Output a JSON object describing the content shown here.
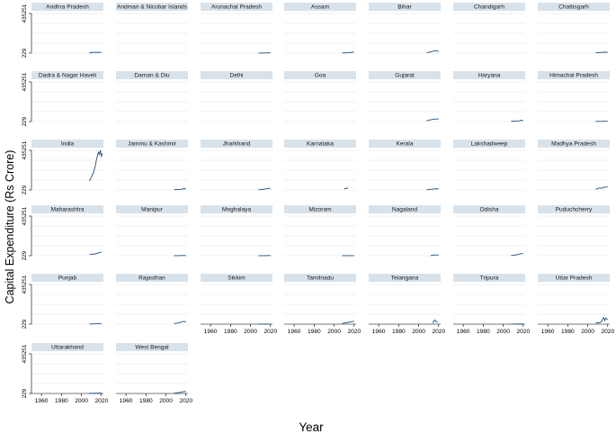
{
  "chart_data": {
    "type": "line",
    "ylabel": "Capital Expenditure (Rs Crore)",
    "xlabel": "Year",
    "y_ticks": [
      "435251",
      "229"
    ],
    "ylim": [
      229,
      435251
    ],
    "x_ticks": [
      "1960",
      "1980",
      "2000",
      "2020"
    ],
    "xlim": [
      1950,
      2022
    ],
    "grid": true,
    "panels": [
      {
        "name": "Andhra Pradesh",
        "series": [
          [
            2008,
            4000
          ],
          [
            2010,
            6500
          ],
          [
            2012,
            8000
          ],
          [
            2014,
            9000
          ],
          [
            2016,
            7500
          ],
          [
            2018,
            9500
          ],
          [
            2020,
            8500
          ]
        ]
      },
      {
        "name": "Andman & Nicobar Islands",
        "series": []
      },
      {
        "name": "Arunachal Pradesh",
        "series": [
          [
            2008,
            900
          ],
          [
            2010,
            1100
          ],
          [
            2012,
            1400
          ],
          [
            2014,
            1700
          ],
          [
            2016,
            2200
          ],
          [
            2018,
            2900
          ],
          [
            2020,
            3500
          ]
        ]
      },
      {
        "name": "Assam",
        "series": [
          [
            2008,
            2000
          ],
          [
            2010,
            2600
          ],
          [
            2012,
            3500
          ],
          [
            2014,
            4500
          ],
          [
            2016,
            6500
          ],
          [
            2018,
            9500
          ],
          [
            2020,
            13000
          ]
        ]
      },
      {
        "name": "Bihar",
        "series": [
          [
            2008,
            6000
          ],
          [
            2010,
            9000
          ],
          [
            2012,
            13000
          ],
          [
            2014,
            20000
          ],
          [
            2016,
            27000
          ],
          [
            2018,
            24000
          ],
          [
            2020,
            19000
          ]
        ]
      },
      {
        "name": "Chandigarh",
        "series": []
      },
      {
        "name": "Chattisgarh",
        "series": [
          [
            2008,
            3000
          ],
          [
            2010,
            4500
          ],
          [
            2012,
            6000
          ],
          [
            2014,
            8500
          ],
          [
            2016,
            10000
          ],
          [
            2018,
            10500
          ],
          [
            2020,
            9500
          ]
        ]
      },
      {
        "name": "Dadra & Nagar Haveli",
        "series": []
      },
      {
        "name": "Daman & Diu",
        "series": []
      },
      {
        "name": "Delhi",
        "series": []
      },
      {
        "name": "Goa",
        "series": []
      },
      {
        "name": "Gujarat",
        "series": [
          [
            2008,
            10000
          ],
          [
            2010,
            14000
          ],
          [
            2012,
            19000
          ],
          [
            2014,
            24000
          ],
          [
            2016,
            27000
          ],
          [
            2018,
            29000
          ],
          [
            2020,
            28000
          ]
        ]
      },
      {
        "name": "Haryana",
        "series": [
          [
            2008,
            3000
          ],
          [
            2010,
            4000
          ],
          [
            2012,
            5000
          ],
          [
            2014,
            6000
          ],
          [
            2016,
            8000
          ],
          [
            2018,
            15000
          ],
          [
            2020,
            10000
          ]
        ]
      },
      {
        "name": "Himachal  Pradesh",
        "series": [
          [
            2008,
            1500
          ],
          [
            2010,
            1800
          ],
          [
            2012,
            2100
          ],
          [
            2014,
            2500
          ],
          [
            2016,
            3000
          ],
          [
            2018,
            3400
          ],
          [
            2020,
            3600
          ]
        ]
      },
      {
        "name": "India",
        "series": [
          [
            2008,
            100000
          ],
          [
            2010,
            140000
          ],
          [
            2011,
            170000
          ],
          [
            2012,
            190000
          ],
          [
            2013,
            230000
          ],
          [
            2014,
            270000
          ],
          [
            2015,
            330000
          ],
          [
            2016,
            375000
          ],
          [
            2017,
            415000
          ],
          [
            2018,
            390000
          ],
          [
            2019,
            435251
          ],
          [
            2020,
            370000
          ],
          [
            2021,
            400000
          ]
        ]
      },
      {
        "name": "Jammu & Kashmir",
        "series": [
          [
            2008,
            3000
          ],
          [
            2010,
            4000
          ],
          [
            2012,
            5500
          ],
          [
            2014,
            6000
          ],
          [
            2016,
            10000
          ],
          [
            2018,
            15000
          ],
          [
            2020,
            12000
          ]
        ]
      },
      {
        "name": "Jharkhand",
        "series": [
          [
            2008,
            3000
          ],
          [
            2010,
            4500
          ],
          [
            2012,
            6500
          ],
          [
            2014,
            10000
          ],
          [
            2016,
            15000
          ],
          [
            2018,
            18000
          ],
          [
            2020,
            16000
          ]
        ]
      },
      {
        "name": "Karnataka",
        "series": [
          [
            2010,
            12000
          ],
          [
            2012,
            17000
          ],
          [
            2014,
            23000
          ]
        ]
      },
      {
        "name": "Kerala",
        "series": [
          [
            2008,
            3000
          ],
          [
            2010,
            5000
          ],
          [
            2012,
            7000
          ],
          [
            2014,
            9500
          ],
          [
            2016,
            12000
          ],
          [
            2018,
            13000
          ],
          [
            2020,
            12000
          ]
        ]
      },
      {
        "name": "Lakshadweep",
        "series": []
      },
      {
        "name": "Madhya Pradesh",
        "series": [
          [
            2008,
            10000
          ],
          [
            2010,
            16000
          ],
          [
            2012,
            23000
          ],
          [
            2014,
            18000
          ],
          [
            2016,
            28000
          ],
          [
            2018,
            32000
          ],
          [
            2020,
            34000
          ]
        ]
      },
      {
        "name": "Maharashtra",
        "series": [
          [
            2008,
            14000
          ],
          [
            2010,
            16000
          ],
          [
            2012,
            18000
          ],
          [
            2014,
            20000
          ],
          [
            2016,
            27000
          ],
          [
            2018,
            35000
          ],
          [
            2020,
            40000
          ]
        ]
      },
      {
        "name": "Manipur",
        "series": [
          [
            2008,
            800
          ],
          [
            2010,
            1000
          ],
          [
            2012,
            1300
          ],
          [
            2014,
            1500
          ],
          [
            2016,
            1800
          ],
          [
            2018,
            2000
          ],
          [
            2020,
            2200
          ]
        ]
      },
      {
        "name": "Meghalaya",
        "series": [
          [
            2008,
            600
          ],
          [
            2010,
            800
          ],
          [
            2012,
            1000
          ],
          [
            2014,
            1200
          ],
          [
            2016,
            1400
          ],
          [
            2018,
            1600
          ],
          [
            2020,
            1800
          ]
        ]
      },
      {
        "name": "Mizoram",
        "series": [
          [
            2008,
            500
          ],
          [
            2010,
            600
          ],
          [
            2012,
            700
          ],
          [
            2014,
            800
          ],
          [
            2016,
            900
          ],
          [
            2018,
            1000
          ],
          [
            2020,
            1100
          ]
        ]
      },
      {
        "name": "Nagaland",
        "series": [
          [
            2012,
            1000
          ],
          [
            2014,
            6000
          ],
          [
            2016,
            9000
          ],
          [
            2018,
            7000
          ],
          [
            2020,
            8000
          ]
        ]
      },
      {
        "name": "Odisha",
        "series": [
          [
            2008,
            3000
          ],
          [
            2010,
            5000
          ],
          [
            2012,
            8000
          ],
          [
            2014,
            12000
          ],
          [
            2016,
            18000
          ],
          [
            2018,
            22000
          ],
          [
            2020,
            24000
          ]
        ]
      },
      {
        "name": "Puduchcherry",
        "series": []
      },
      {
        "name": "Punjab",
        "series": [
          [
            2008,
            2000
          ],
          [
            2010,
            2500
          ],
          [
            2012,
            3000
          ],
          [
            2014,
            3500
          ],
          [
            2016,
            4500
          ],
          [
            2018,
            5000
          ],
          [
            2020,
            5000
          ]
        ]
      },
      {
        "name": "Rajasthan",
        "series": [
          [
            2008,
            6000
          ],
          [
            2010,
            9000
          ],
          [
            2012,
            13000
          ],
          [
            2014,
            18000
          ],
          [
            2016,
            25000
          ],
          [
            2018,
            30000
          ],
          [
            2020,
            24000
          ]
        ]
      },
      {
        "name": "Sikkim",
        "series": [
          [
            2008,
            400
          ],
          [
            2010,
            500
          ],
          [
            2012,
            600
          ],
          [
            2014,
            700
          ],
          [
            2016,
            800
          ],
          [
            2018,
            900
          ],
          [
            2020,
            900
          ]
        ]
      },
      {
        "name": "Tamilnadu",
        "series": [
          [
            2008,
            8000
          ],
          [
            2010,
            12000
          ],
          [
            2012,
            16000
          ],
          [
            2014,
            20000
          ],
          [
            2016,
            24000
          ],
          [
            2018,
            28000
          ],
          [
            2020,
            32000
          ]
        ]
      },
      {
        "name": "Telangana",
        "series": [
          [
            2014,
            12000
          ],
          [
            2015,
            30000
          ],
          [
            2016,
            45000
          ],
          [
            2017,
            35000
          ],
          [
            2018,
            28000
          ],
          [
            2019,
            20000
          ]
        ]
      },
      {
        "name": "Tripura",
        "series": [
          [
            2008,
            800
          ],
          [
            2010,
            1000
          ],
          [
            2012,
            1300
          ],
          [
            2014,
            1500
          ],
          [
            2016,
            1600
          ],
          [
            2018,
            1500
          ],
          [
            2020,
            1400
          ]
        ]
      },
      {
        "name": "Uttar Pradesh",
        "series": [
          [
            2008,
            12000
          ],
          [
            2010,
            15000
          ],
          [
            2012,
            16000
          ],
          [
            2014,
            30000
          ],
          [
            2015,
            58000
          ],
          [
            2016,
            72000
          ],
          [
            2017,
            40000
          ],
          [
            2018,
            68000
          ],
          [
            2019,
            58000
          ],
          [
            2020,
            50000
          ]
        ]
      },
      {
        "name": "Uttarakhand",
        "series": [
          [
            2008,
            1500
          ],
          [
            2010,
            2000
          ],
          [
            2012,
            2400
          ],
          [
            2014,
            3000
          ],
          [
            2016,
            3700
          ],
          [
            2018,
            4500
          ],
          [
            2020,
            5000
          ]
        ]
      },
      {
        "name": "West Bengal",
        "series": [
          [
            2008,
            4000
          ],
          [
            2010,
            6000
          ],
          [
            2012,
            9000
          ],
          [
            2014,
            12000
          ],
          [
            2016,
            17000
          ],
          [
            2018,
            22000
          ],
          [
            2020,
            20000
          ]
        ]
      }
    ]
  }
}
